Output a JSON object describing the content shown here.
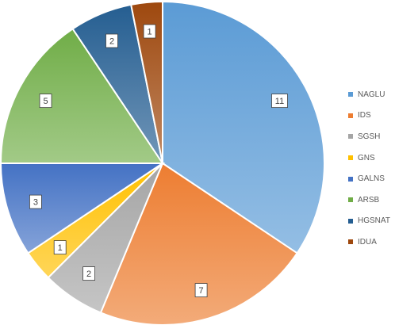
{
  "chart_data": {
    "type": "pie",
    "title": "",
    "categories": [
      "NAGLU",
      "IDS",
      "SGSH",
      "GNS",
      "GALNS",
      "ARSB",
      "HGSNAT",
      "IDUA"
    ],
    "values": [
      11,
      7,
      2,
      1,
      3,
      5,
      2,
      1
    ],
    "colors": [
      "#5B9BD5",
      "#ED7D31",
      "#A5A5A5",
      "#FFC000",
      "#4472C4",
      "#70AD47",
      "#255E91",
      "#9E480E"
    ],
    "data_labels": true,
    "legend_position": "right",
    "start_angle_deg": 0,
    "direction": "clockwise"
  }
}
